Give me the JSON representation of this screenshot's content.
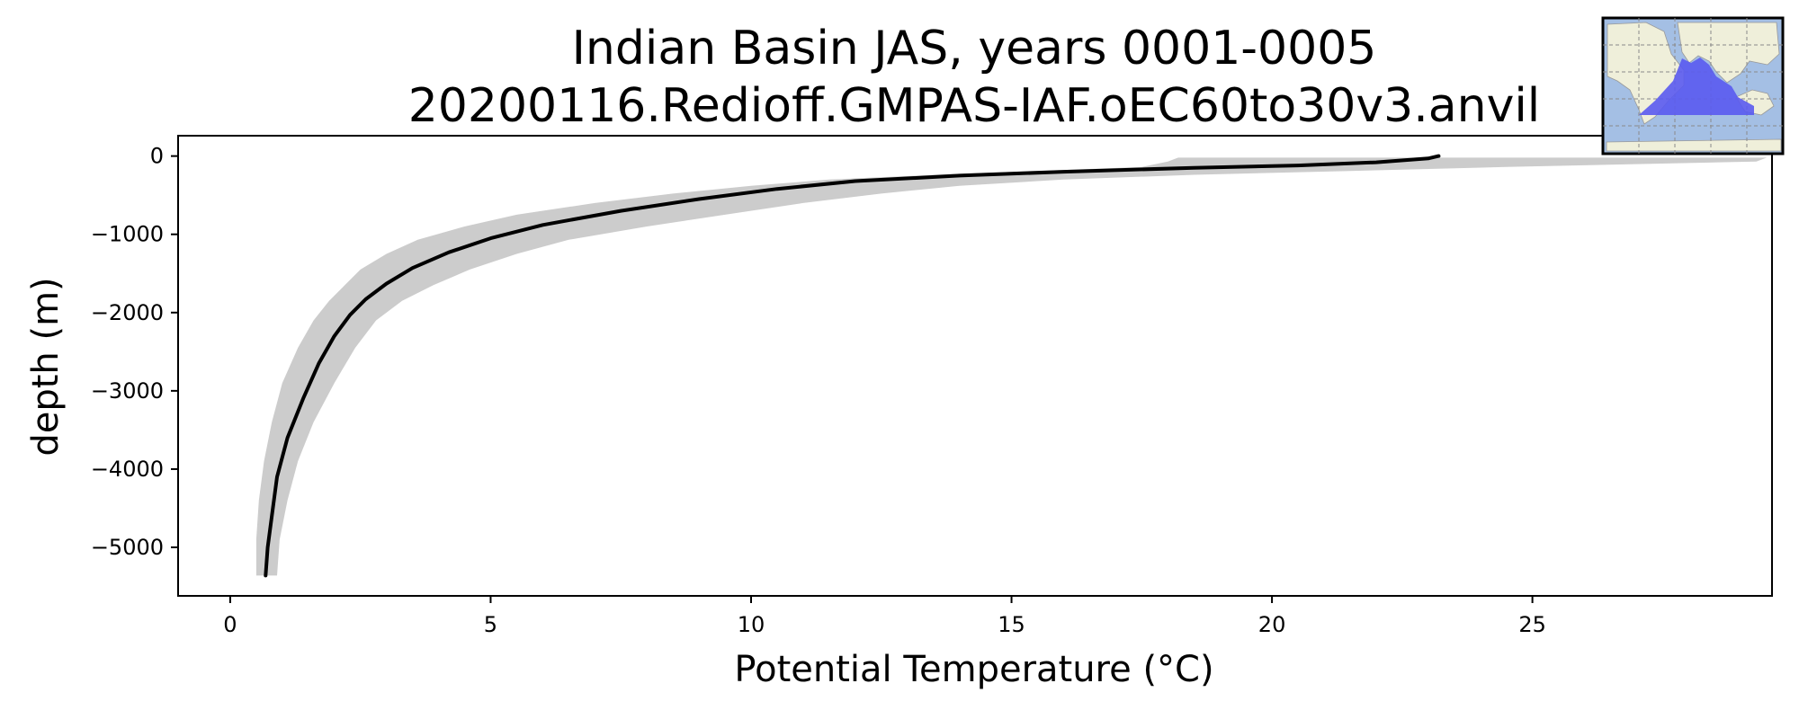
{
  "chart_data": {
    "type": "line",
    "title": "Indian Basin JAS, years 0001-0005",
    "subtitle": "20200116.Redioff.GMPAS-IAF.oEC60to30v3.anvil",
    "xlabel": "Potential Temperature (°C)",
    "ylabel": "depth (m)",
    "xlim": [
      -1,
      29.6
    ],
    "ylim": [
      -5620,
      260
    ],
    "xticks": [
      0,
      5,
      10,
      15,
      20,
      25
    ],
    "yticks": [
      0,
      -1000,
      -2000,
      -3000,
      -4000,
      -5000
    ],
    "xtick_labels": [
      "0",
      "5",
      "10",
      "15",
      "20",
      "25"
    ],
    "ytick_labels": [
      "0",
      "−1000",
      "−2000",
      "−3000",
      "−4000",
      "−5000"
    ],
    "grid": false,
    "series": [
      {
        "role": "mean",
        "color": "#000000",
        "x": [
          23.2,
          23.0,
          22.0,
          20.5,
          18.5,
          16.0,
          14.0,
          12.0,
          10.5,
          9.0,
          7.5,
          6.0,
          5.0,
          4.2,
          3.5,
          3.0,
          2.6,
          2.3,
          2.0,
          1.7,
          1.4,
          1.1,
          0.9,
          0.8,
          0.72,
          0.68
        ],
        "y": [
          0,
          -30,
          -80,
          -120,
          -150,
          -200,
          -250,
          -320,
          -420,
          -550,
          -700,
          -880,
          -1050,
          -1230,
          -1430,
          -1630,
          -1830,
          -2030,
          -2300,
          -2650,
          -3100,
          -3600,
          -4100,
          -4600,
          -5000,
          -5360
        ]
      }
    ],
    "band": {
      "role": "range",
      "color": "#cccccc",
      "x_low": [
        18.2,
        18.0,
        17.5,
        15.5,
        13.5,
        11.5,
        10.0,
        8.5,
        7.0,
        5.5,
        4.5,
        3.6,
        3.0,
        2.5,
        2.2,
        1.9,
        1.6,
        1.3,
        1.0,
        0.8,
        0.65,
        0.55,
        0.5,
        0.5
      ],
      "x_high": [
        29.5,
        29.3,
        24.5,
        21.5,
        18.5,
        16.0,
        14.0,
        12.5,
        11.0,
        9.5,
        8.0,
        6.5,
        5.5,
        4.6,
        3.9,
        3.3,
        2.8,
        2.4,
        2.0,
        1.6,
        1.3,
        1.1,
        0.95,
        0.9
      ],
      "y": [
        -20,
        -70,
        -140,
        -190,
        -240,
        -300,
        -380,
        -480,
        -600,
        -750,
        -900,
        -1070,
        -1250,
        -1450,
        -1650,
        -1850,
        -2100,
        -2450,
        -2900,
        -3400,
        -3900,
        -4400,
        -4900,
        -5360
      ]
    }
  },
  "inset_map": {
    "ocean_color": "#a4bfe4",
    "land_color": "#efefda",
    "region_color": "#5a5af0"
  }
}
